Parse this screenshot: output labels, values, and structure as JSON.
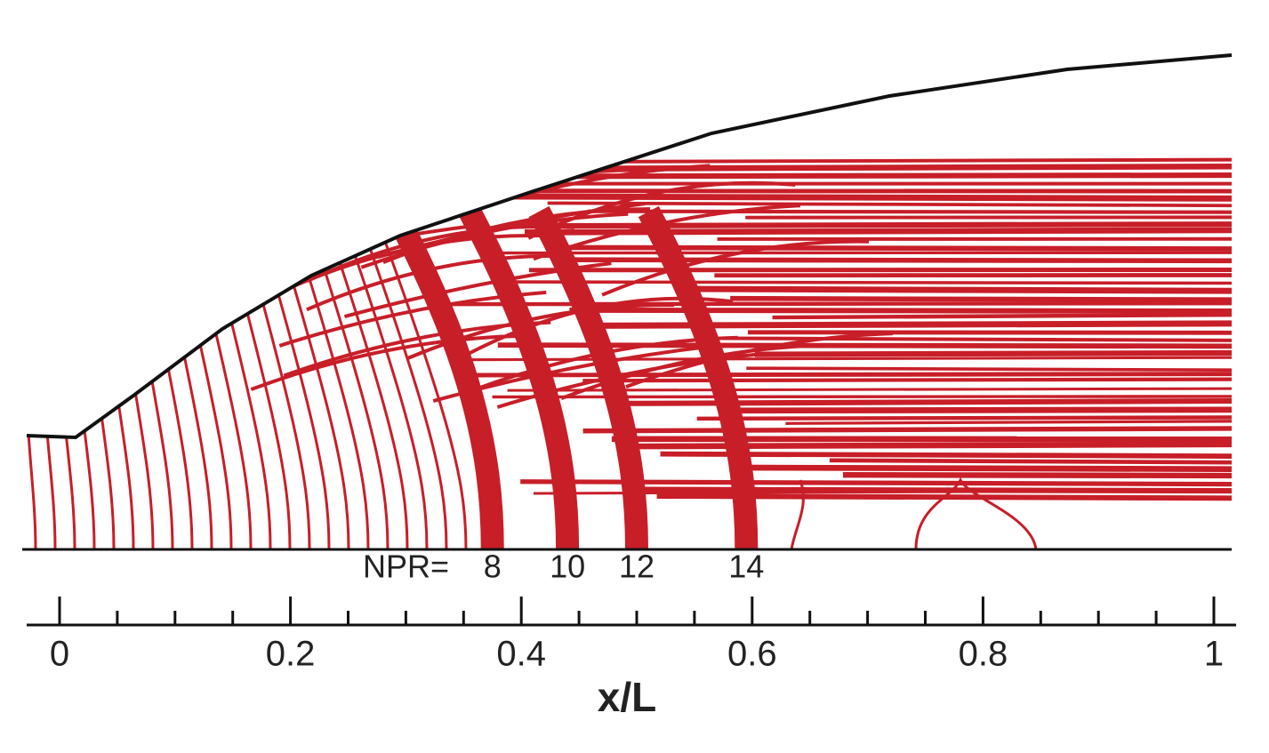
{
  "chart_data": {
    "type": "contour",
    "xlabel": "x/L",
    "xlim": [
      0,
      1
    ],
    "xticks": [
      0,
      0.2,
      0.4,
      0.6,
      0.8,
      1
    ],
    "xminorticks": [
      0.05,
      0.1,
      0.15,
      0.25,
      0.3,
      0.35,
      0.45,
      0.5,
      0.55,
      0.65,
      0.7,
      0.75,
      0.85,
      0.9,
      0.95
    ],
    "annotation_prefix": "NPR=",
    "color": "#c81e28",
    "shocks": [
      {
        "npr": 8,
        "x": 0.375
      },
      {
        "npr": 10,
        "x": 0.44
      },
      {
        "npr": 12,
        "x": 0.5
      },
      {
        "npr": 14,
        "x": 0.595
      }
    ]
  }
}
